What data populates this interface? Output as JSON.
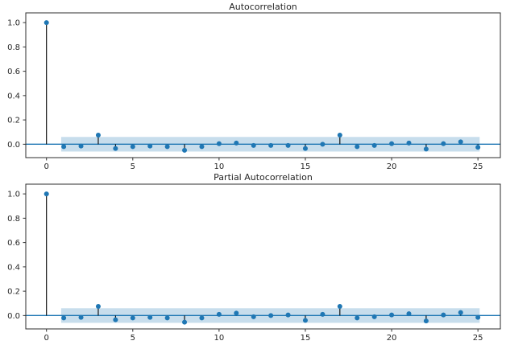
{
  "figure": {
    "background": "#ffffff",
    "text_color": "#262626"
  },
  "chart_data": [
    {
      "id": "acf",
      "type": "stem",
      "title": "Autocorrelation",
      "xlabel": "",
      "ylabel": "",
      "xlim": [
        -1.2,
        26.3
      ],
      "ylim": [
        -0.11,
        1.08
      ],
      "grid": false,
      "legend": null,
      "lags": [
        0,
        1,
        2,
        3,
        4,
        5,
        6,
        7,
        8,
        9,
        10,
        11,
        12,
        13,
        14,
        15,
        16,
        17,
        18,
        19,
        20,
        21,
        22,
        23,
        24,
        25
      ],
      "values": [
        1.0,
        -0.02,
        -0.015,
        0.075,
        -0.035,
        -0.02,
        -0.015,
        -0.02,
        -0.05,
        -0.02,
        0.005,
        0.01,
        -0.01,
        -0.01,
        -0.01,
        -0.035,
        0.0,
        0.075,
        -0.02,
        -0.01,
        0.005,
        0.01,
        -0.04,
        0.005,
        0.02,
        -0.025
      ],
      "ci_band": {
        "lower": -0.06,
        "upper": 0.06,
        "x_start": 0.85,
        "x_end": 25.1
      },
      "xticks": [
        {
          "v": 0,
          "label": "0"
        },
        {
          "v": 5,
          "label": "5"
        },
        {
          "v": 10,
          "label": "10"
        },
        {
          "v": 15,
          "label": "15"
        },
        {
          "v": 20,
          "label": "20"
        },
        {
          "v": 25,
          "label": "25"
        }
      ],
      "yticks": [
        {
          "v": 0.0,
          "label": "0.0"
        },
        {
          "v": 0.2,
          "label": "0.2"
        },
        {
          "v": 0.4,
          "label": "0.4"
        },
        {
          "v": 0.6,
          "label": "0.6"
        },
        {
          "v": 0.8,
          "label": "0.8"
        },
        {
          "v": 1.0,
          "label": "1.0"
        }
      ],
      "colors": {
        "marker": "#1f77b4",
        "stem": "#000000",
        "zero_line": "#1f77b4",
        "band": "rgba(31,119,180,0.25)",
        "frame": "#2e2e2e"
      }
    },
    {
      "id": "pacf",
      "type": "stem",
      "title": "Partial Autocorrelation",
      "xlabel": "",
      "ylabel": "",
      "xlim": [
        -1.2,
        26.3
      ],
      "ylim": [
        -0.11,
        1.08
      ],
      "grid": false,
      "legend": null,
      "lags": [
        0,
        1,
        2,
        3,
        4,
        5,
        6,
        7,
        8,
        9,
        10,
        11,
        12,
        13,
        14,
        15,
        16,
        17,
        18,
        19,
        20,
        21,
        22,
        23,
        24,
        25
      ],
      "values": [
        1.0,
        -0.02,
        -0.015,
        0.075,
        -0.035,
        -0.02,
        -0.015,
        -0.02,
        -0.055,
        -0.02,
        0.01,
        0.02,
        -0.01,
        0.0,
        0.005,
        -0.04,
        0.01,
        0.075,
        -0.02,
        -0.01,
        0.005,
        0.015,
        -0.045,
        0.005,
        0.025,
        -0.015
      ],
      "ci_band": {
        "lower": -0.06,
        "upper": 0.06,
        "x_start": 0.85,
        "x_end": 25.1
      },
      "xticks": [
        {
          "v": 0,
          "label": "0"
        },
        {
          "v": 5,
          "label": "5"
        },
        {
          "v": 10,
          "label": "10"
        },
        {
          "v": 15,
          "label": "15"
        },
        {
          "v": 20,
          "label": "20"
        },
        {
          "v": 25,
          "label": "25"
        }
      ],
      "yticks": [
        {
          "v": 0.0,
          "label": "0.0"
        },
        {
          "v": 0.2,
          "label": "0.2"
        },
        {
          "v": 0.4,
          "label": "0.4"
        },
        {
          "v": 0.6,
          "label": "0.6"
        },
        {
          "v": 0.8,
          "label": "0.8"
        },
        {
          "v": 1.0,
          "label": "1.0"
        }
      ],
      "colors": {
        "marker": "#1f77b4",
        "stem": "#000000",
        "zero_line": "#1f77b4",
        "band": "rgba(31,119,180,0.25)",
        "frame": "#2e2e2e"
      }
    }
  ]
}
